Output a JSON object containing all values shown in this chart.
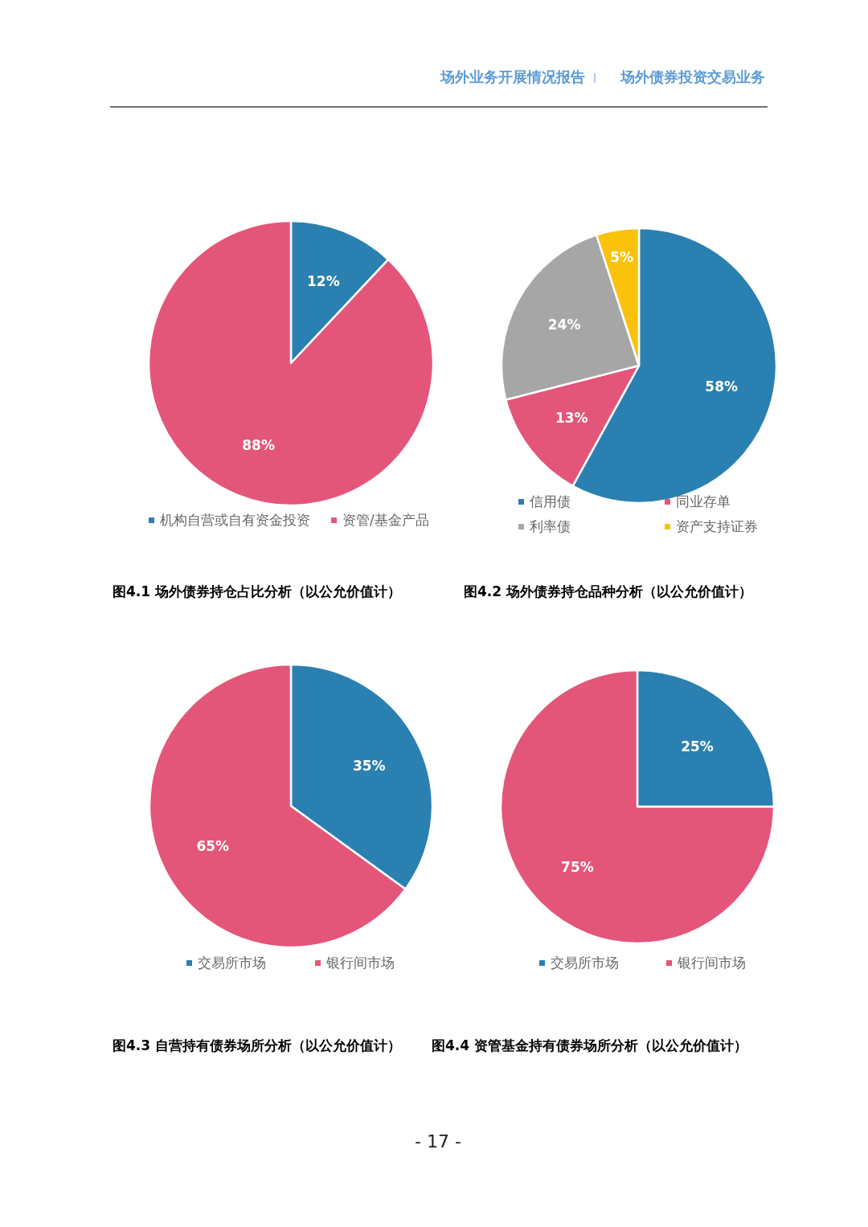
{
  "chart_data": [
    {
      "type": "pie",
      "title": "图4.1 场外债券持仓占比分析（以公允价值计）",
      "categories": [
        "机构自营或自有资金投资",
        "资管/基金产品"
      ],
      "values": [
        12,
        88
      ],
      "value_labels": [
        "12%",
        "88%"
      ],
      "colors": [
        "#2a80b0",
        "#e4557a"
      ],
      "legend": "bottom",
      "annotations": [
        "场外业务开展情况报告",
        "场外债券投资交易业务"
      ]
    },
    {
      "type": "pie",
      "title": "图4.2 场外债券持仓品种分析（以公允价值计）",
      "categories": [
        "信用债",
        "同业存单",
        "利率债",
        "资产支持证券"
      ],
      "values": [
        58,
        13,
        24,
        5
      ],
      "value_labels": [
        "58%",
        "13%",
        "24%",
        "5%"
      ],
      "colors": [
        "#2a80b0",
        "#e4557a",
        "#a6a6a6",
        "#fbc20b"
      ],
      "legend": "bottom"
    },
    {
      "type": "pie",
      "title": "图4.3 自营持有债券场所分析（以公允价值计）",
      "categories": [
        "交易所市场",
        "银行间市场"
      ],
      "values": [
        35,
        65
      ],
      "value_labels": [
        "35%",
        "65%"
      ],
      "colors": [
        "#2a80b0",
        "#e4557a"
      ],
      "legend": "bottom"
    },
    {
      "type": "pie",
      "title": "图4.4 资管基金持有债券场所分析（以公允价值计）",
      "categories": [
        "交易所市场",
        "银行间市场"
      ],
      "values": [
        25,
        75
      ],
      "value_labels": [
        "25%",
        "75%"
      ],
      "colors": [
        "#2a80b0",
        "#e4557a"
      ],
      "legend": "bottom",
      "annotations": [
        "- 17 -"
      ]
    }
  ]
}
